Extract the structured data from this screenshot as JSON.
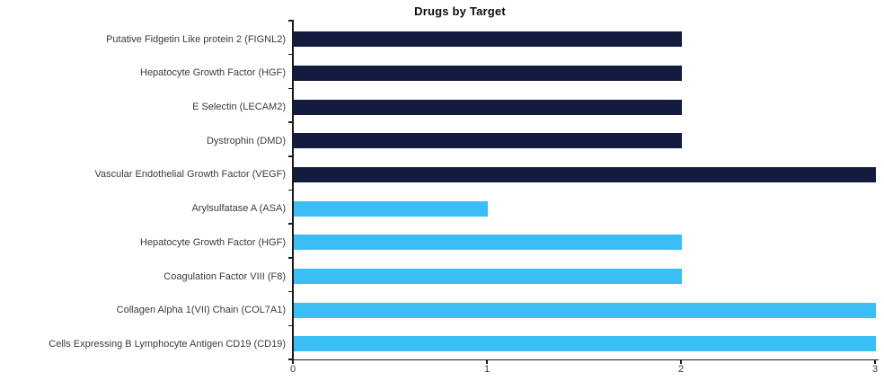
{
  "chart_data": {
    "type": "bar",
    "orientation": "horizontal",
    "title": "Drugs by Target",
    "xlabel": "",
    "ylabel": "",
    "xlim": [
      0,
      3
    ],
    "xticks": [
      "0",
      "1",
      "2",
      "3"
    ],
    "grid": false,
    "legend": false,
    "axis_color": "#1a1a1a",
    "label_color": "#3b3b3b",
    "points": [
      {
        "label": "Putative Fidgetin Like protein 2 (FIGNL2)",
        "value": 2,
        "color": "#131C3E"
      },
      {
        "label": "Hepatocyte Growth Factor (HGF)",
        "value": 2,
        "color": "#131C3E"
      },
      {
        "label": "E Selectin (LECAM2)",
        "value": 2,
        "color": "#131C3E"
      },
      {
        "label": "Dystrophin (DMD)",
        "value": 2,
        "color": "#131C3E"
      },
      {
        "label": "Vascular Endothelial Growth Factor (VEGF)",
        "value": 3,
        "color": "#131C3E"
      },
      {
        "label": "Arylsulfatase A (ASA)",
        "value": 1,
        "color": "#3ABEF5"
      },
      {
        "label": "Hepatocyte Growth Factor (HGF)",
        "value": 2,
        "color": "#3ABEF5"
      },
      {
        "label": "Coagulation Factor VIII (F8)",
        "value": 2,
        "color": "#3ABEF5"
      },
      {
        "label": "Collagen Alpha 1(VII) Chain (COL7A1)",
        "value": 3,
        "color": "#3ABEF5"
      },
      {
        "label": "Cells Expressing B Lymphocyte Antigen CD19 (CD19)",
        "value": 3,
        "color": "#3ABEF5"
      }
    ]
  }
}
